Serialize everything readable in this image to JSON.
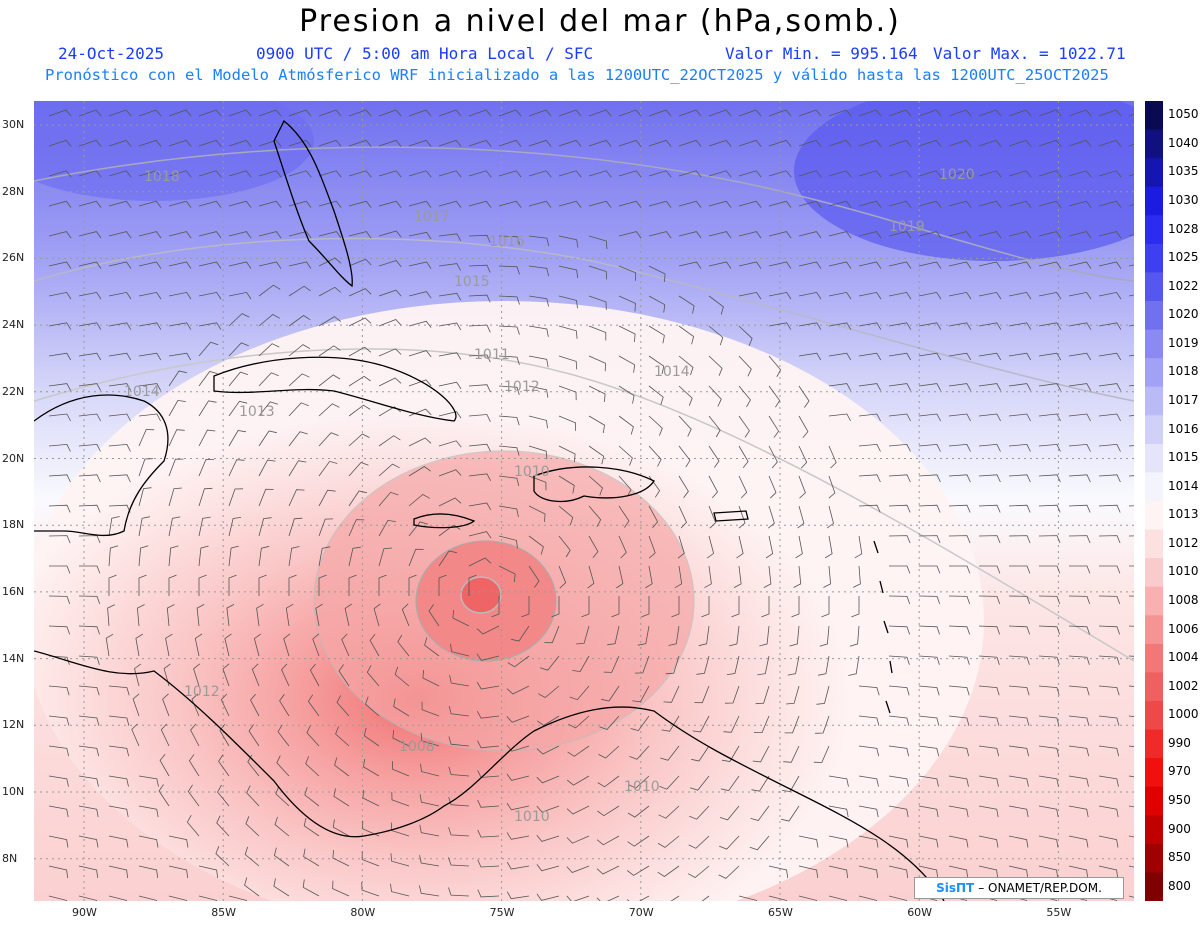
{
  "title": "Presion a nivel del mar (hPa,somb.)",
  "date": "24-Oct-2025",
  "time_info": "0900 UTC / 5:00 am Hora Local / SFC",
  "min_label": "Valor Min. = 995.164",
  "max_label": "Valor Max. = 1022.71",
  "subtitle": "Pronóstico con el Modelo Atmósferico WRF inicializado a las 1200UTC_22OCT2025 y válido hasta las  1200UTC_25OCT2025",
  "colorbar": {
    "labels": [
      "1050",
      "1040",
      "1035",
      "1030",
      "1028",
      "1025",
      "1022",
      "1020",
      "1019",
      "1018",
      "1017",
      "1016",
      "1015",
      "1014",
      "1013",
      "1012",
      "1010",
      "1008",
      "1006",
      "1004",
      "1002",
      "1000",
      "990",
      "970",
      "950",
      "900",
      "850",
      "800"
    ],
    "colors": [
      "#0a0a50",
      "#10107e",
      "#1515b4",
      "#1c1ce0",
      "#2c2cf0",
      "#3e3ef2",
      "#5656f0",
      "#7070f0",
      "#8a8af2",
      "#a2a2f4",
      "#babaf6",
      "#d0d0f8",
      "#e4e4fa",
      "#f4f4fc",
      "#fff4f4",
      "#fde0e0",
      "#fbcaca",
      "#f8b0b0",
      "#f59494",
      "#f27878",
      "#f06060",
      "#ef4848",
      "#f02a2a",
      "#f01010",
      "#e00000",
      "#c00000",
      "#a00000",
      "#800000"
    ]
  },
  "lat_labels": [
    "30N",
    "28N",
    "26N",
    "24N",
    "22N",
    "20N",
    "18N",
    "16N",
    "14N",
    "12N",
    "10N",
    "8N"
  ],
  "lon_labels": [
    "90W",
    "85W",
    "80W",
    "75W",
    "70W",
    "65W",
    "60W",
    "55W"
  ],
  "isobar_labels": [
    "1018",
    "1017",
    "1016",
    "1015",
    "1014",
    "1013",
    "1012",
    "1011",
    "1010",
    "1008",
    "1020",
    "1019"
  ],
  "credit": {
    "brand": "SisПT",
    "text": "– ONAMET/REP.DOM."
  }
}
